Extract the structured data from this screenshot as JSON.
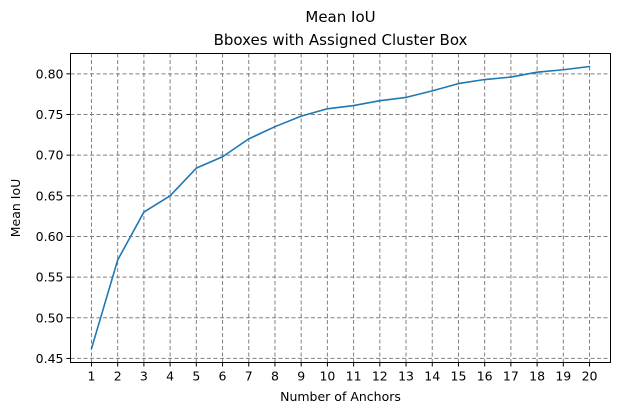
{
  "chart_data": {
    "type": "line",
    "title": "Mean IoU",
    "subtitle": "Bboxes with Assigned Cluster Box",
    "xlabel": "Number of Anchors",
    "ylabel": "Mean IoU",
    "x": [
      1,
      2,
      3,
      4,
      5,
      6,
      7,
      8,
      9,
      10,
      11,
      12,
      13,
      14,
      15,
      16,
      17,
      18,
      19,
      20
    ],
    "series": [
      {
        "values": [
          0.462,
          0.571,
          0.63,
          0.65,
          0.684,
          0.698,
          0.72,
          0.735,
          0.748,
          0.757,
          0.761,
          0.767,
          0.771,
          0.779,
          0.788,
          0.793,
          0.796,
          0.802,
          0.805,
          0.809
        ],
        "color": "#1f77b4"
      }
    ],
    "xlim": [
      0.2,
      20.8
    ],
    "ylim": [
      0.445,
      0.825
    ],
    "xticks": [
      "1",
      "2",
      "3",
      "4",
      "5",
      "6",
      "7",
      "8",
      "9",
      "10",
      "11",
      "12",
      "13",
      "14",
      "15",
      "16",
      "17",
      "18",
      "19",
      "20"
    ],
    "yticks": [
      "0.45",
      "0.50",
      "0.55",
      "0.60",
      "0.65",
      "0.70",
      "0.75",
      "0.80"
    ],
    "grid": true,
    "legend": false
  }
}
